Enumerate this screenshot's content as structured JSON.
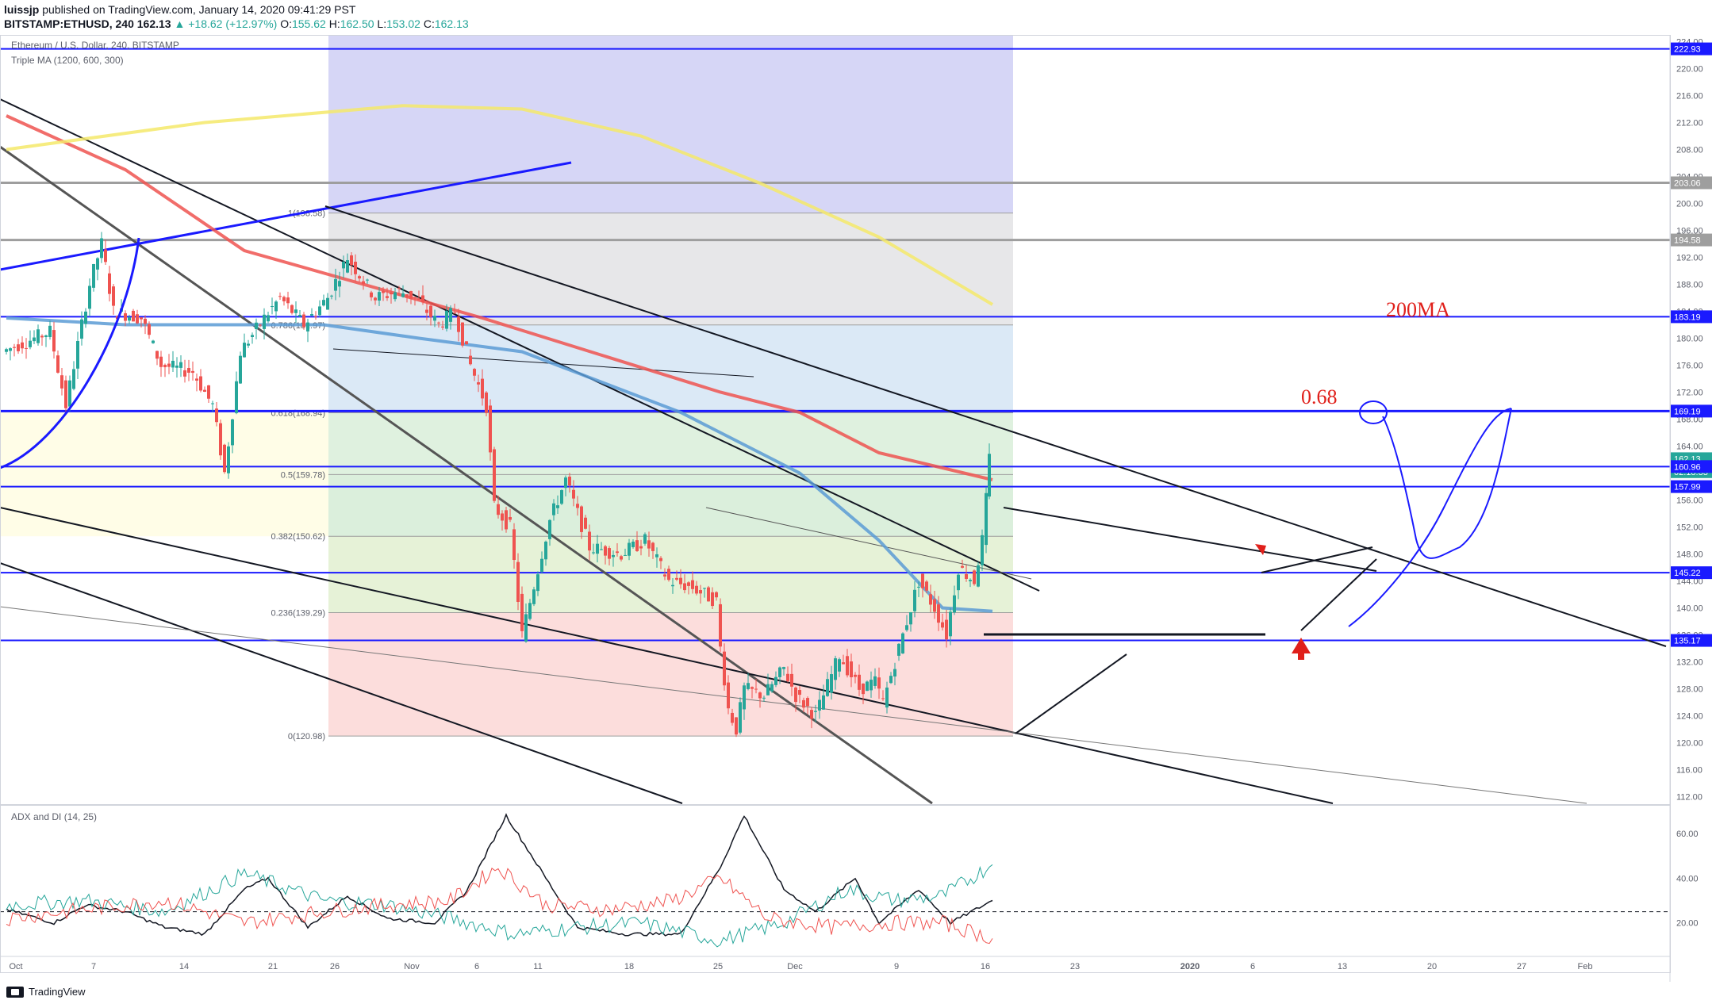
{
  "header": {
    "user": "luissjp",
    "published": "published on TradingView.com, January 14, 2020 09:41:29 PST",
    "symbol": "BITSTAMP:ETHUSD, 240",
    "last": "162.13",
    "change": "▲ +18.62 (+12.97%)",
    "o_label": "O:",
    "o": "155.62",
    "h_label": "H:",
    "h": "162.50",
    "l_label": "L:",
    "l": "153.02",
    "c_label": "C:",
    "c": "162.13"
  },
  "pane": {
    "title": "Ethereum / U.S. Dollar, 240, BITSTAMP",
    "indicator": "Triple MA (1200, 600, 300)",
    "adx_title": "ADX and DI (14, 25)"
  },
  "footer": {
    "brand": "TradingView"
  },
  "colors": {
    "up": "#26a69a",
    "down": "#ef5350",
    "blue_line": "#1a1aff",
    "ma_red": "#ef5350",
    "ma_blue": "#5b9bd5",
    "ma_yellow": "#f5e96a",
    "annotation_red": "#e0201b",
    "annotation_blue": "#1a1aff"
  },
  "chart_data": [
    {
      "type": "line",
      "title": "Ethereum / U.S. Dollar, 240, BITSTAMP",
      "xlabel": "",
      "ylabel": "",
      "x_ticks": [
        "Oct",
        "7",
        "14",
        "21",
        "26",
        "Nov",
        "6",
        "11",
        "18",
        "25",
        "Dec",
        "9",
        "16",
        "23",
        "2020",
        "6",
        "13",
        "20",
        "27",
        "Feb"
      ],
      "y_ticks": [
        "224.00",
        "220.00",
        "216.00",
        "212.00",
        "208.00",
        "204.00",
        "200.00",
        "196.00",
        "192.00",
        "188.00",
        "184.00",
        "180.00",
        "176.00",
        "172.00",
        "168.00",
        "164.00",
        "160.00",
        "156.00",
        "152.00",
        "148.00",
        "144.00",
        "140.00",
        "136.00",
        "132.00",
        "128.00",
        "124.00",
        "120.00",
        "116.00",
        "112.00"
      ],
      "ylim": [
        111,
        225
      ],
      "price_labels": [
        {
          "value": 222.93,
          "text": "222.93",
          "color": "#1a1aff"
        },
        {
          "value": 203.06,
          "text": "203.06",
          "color": "#9e9e9e"
        },
        {
          "value": 194.58,
          "text": "194.58",
          "color": "#9e9e9e"
        },
        {
          "value": 183.19,
          "text": "183.19",
          "color": "#1a1aff"
        },
        {
          "value": 169.19,
          "text": "169.19",
          "color": "#1a1aff"
        },
        {
          "value": 162.13,
          "text": "162.13",
          "color": "#26a69a"
        },
        {
          "value": 160.2,
          "text": "02:18:33",
          "color": "#26a69a"
        },
        {
          "value": 160.96,
          "text": "160.96",
          "color": "#1a1aff"
        },
        {
          "value": 157.99,
          "text": "157.99",
          "color": "#1a1aff"
        },
        {
          "value": 145.22,
          "text": "145.22",
          "color": "#1a1aff"
        },
        {
          "value": 135.17,
          "text": "135.17",
          "color": "#1a1aff"
        }
      ],
      "horizontal_levels": [
        222.93,
        203.06,
        194.58,
        183.19,
        169.19,
        160.96,
        157.99,
        145.22,
        135.17
      ],
      "fib_levels": [
        {
          "label": "1(198.58)",
          "value": 198.58
        },
        {
          "label": "0.786(181.97)",
          "value": 181.97
        },
        {
          "label": "0.618(168.94)",
          "value": 168.94
        },
        {
          "label": "0.5(159.78)",
          "value": 159.78
        },
        {
          "label": "0.382(150.62)",
          "value": 150.62
        },
        {
          "label": "0.236(139.29)",
          "value": 139.29
        },
        {
          "label": "0(120.98)",
          "value": 120.98
        }
      ],
      "price_path": [
        {
          "x": 0,
          "y": 178
        },
        {
          "x": 60,
          "y": 181
        },
        {
          "x": 80,
          "y": 170
        },
        {
          "x": 110,
          "y": 188
        },
        {
          "x": 125,
          "y": 194
        },
        {
          "x": 140,
          "y": 184
        },
        {
          "x": 175,
          "y": 183
        },
        {
          "x": 200,
          "y": 176
        },
        {
          "x": 240,
          "y": 175
        },
        {
          "x": 265,
          "y": 170
        },
        {
          "x": 280,
          "y": 160
        },
        {
          "x": 300,
          "y": 178
        },
        {
          "x": 330,
          "y": 183
        },
        {
          "x": 350,
          "y": 186
        },
        {
          "x": 380,
          "y": 182
        },
        {
          "x": 410,
          "y": 186
        },
        {
          "x": 435,
          "y": 192
        },
        {
          "x": 470,
          "y": 186
        },
        {
          "x": 500,
          "y": 187
        },
        {
          "x": 520,
          "y": 186
        },
        {
          "x": 550,
          "y": 182
        },
        {
          "x": 570,
          "y": 184
        },
        {
          "x": 590,
          "y": 176
        },
        {
          "x": 610,
          "y": 170
        },
        {
          "x": 620,
          "y": 155
        },
        {
          "x": 640,
          "y": 152
        },
        {
          "x": 655,
          "y": 136
        },
        {
          "x": 690,
          "y": 153
        },
        {
          "x": 710,
          "y": 159
        },
        {
          "x": 740,
          "y": 149
        },
        {
          "x": 780,
          "y": 148
        },
        {
          "x": 810,
          "y": 150
        },
        {
          "x": 840,
          "y": 144
        },
        {
          "x": 870,
          "y": 143
        },
        {
          "x": 900,
          "y": 141
        },
        {
          "x": 905,
          "y": 134
        },
        {
          "x": 915,
          "y": 125
        },
        {
          "x": 925,
          "y": 122
        },
        {
          "x": 935,
          "y": 128
        },
        {
          "x": 960,
          "y": 127
        },
        {
          "x": 985,
          "y": 131
        },
        {
          "x": 1000,
          "y": 127
        },
        {
          "x": 1025,
          "y": 124
        },
        {
          "x": 1055,
          "y": 133
        },
        {
          "x": 1080,
          "y": 128
        },
        {
          "x": 1100,
          "y": 129
        },
        {
          "x": 1110,
          "y": 126
        },
        {
          "x": 1135,
          "y": 136
        },
        {
          "x": 1155,
          "y": 144
        },
        {
          "x": 1175,
          "y": 140
        },
        {
          "x": 1190,
          "y": 136
        },
        {
          "x": 1205,
          "y": 146
        },
        {
          "x": 1225,
          "y": 144
        },
        {
          "x": 1235,
          "y": 150
        },
        {
          "x": 1243,
          "y": 162.13
        }
      ],
      "series": [
        {
          "values": [
            {
              "x": 0,
              "y": 183
            },
            {
              "x": 150,
              "y": 182
            },
            {
              "x": 400,
              "y": 182
            },
            {
              "x": 520,
              "y": 180
            },
            {
              "x": 650,
              "y": 178
            },
            {
              "x": 850,
              "y": 169
            },
            {
              "x": 1000,
              "y": 160
            },
            {
              "x": 1100,
              "y": 150
            },
            {
              "x": 1180,
              "y": 140
            },
            {
              "x": 1243,
              "y": 139.5
            }
          ],
          "color": "#5b9bd5"
        },
        {
          "values": [
            {
              "x": 0,
              "y": 213
            },
            {
              "x": 150,
              "y": 205
            },
            {
              "x": 300,
              "y": 193
            },
            {
              "x": 600,
              "y": 183
            },
            {
              "x": 900,
              "y": 172
            },
            {
              "x": 1000,
              "y": 169
            },
            {
              "x": 1100,
              "y": 163
            },
            {
              "x": 1243,
              "y": 159
            }
          ],
          "color": "#ef5350"
        },
        {
          "values": [
            {
              "x": 0,
              "y": 208
            },
            {
              "x": 250,
              "y": 212
            },
            {
              "x": 500,
              "y": 214.5
            },
            {
              "x": 650,
              "y": 214
            },
            {
              "x": 800,
              "y": 210
            },
            {
              "x": 950,
              "y": 203
            },
            {
              "x": 1100,
              "y": 195
            },
            {
              "x": 1243,
              "y": 185
            }
          ],
          "color": "#f5e96a"
        }
      ]
    },
    {
      "type": "line",
      "title": "ADX and DI (14, 25)",
      "y_ticks": [
        "60.00",
        "40.00",
        "20.00"
      ],
      "ylim": [
        5,
        72
      ],
      "threshold": 25,
      "series": [
        {
          "values": [
            {
              "x": 0,
              "y": 26
            },
            {
              "x": 60,
              "y": 20
            },
            {
              "x": 100,
              "y": 28
            },
            {
              "x": 150,
              "y": 25
            },
            {
              "x": 200,
              "y": 18
            },
            {
              "x": 250,
              "y": 15
            },
            {
              "x": 300,
              "y": 35
            },
            {
              "x": 330,
              "y": 40
            },
            {
              "x": 380,
              "y": 18
            },
            {
              "x": 430,
              "y": 32
            },
            {
              "x": 480,
              "y": 22
            },
            {
              "x": 540,
              "y": 20
            },
            {
              "x": 580,
              "y": 34
            },
            {
              "x": 630,
              "y": 68
            },
            {
              "x": 680,
              "y": 40
            },
            {
              "x": 720,
              "y": 18
            },
            {
              "x": 780,
              "y": 15
            },
            {
              "x": 850,
              "y": 15
            },
            {
              "x": 900,
              "y": 45
            },
            {
              "x": 930,
              "y": 68
            },
            {
              "x": 980,
              "y": 35
            },
            {
              "x": 1020,
              "y": 25
            },
            {
              "x": 1070,
              "y": 40
            },
            {
              "x": 1100,
              "y": 20
            },
            {
              "x": 1150,
              "y": 35
            },
            {
              "x": 1190,
              "y": 20
            },
            {
              "x": 1243,
              "y": 30
            }
          ],
          "color": "#131722"
        },
        {
          "values": [
            {
              "x": 0,
              "y": 28
            },
            {
              "x": 100,
              "y": 30
            },
            {
              "x": 200,
              "y": 25
            },
            {
              "x": 300,
              "y": 42
            },
            {
              "x": 400,
              "y": 30
            },
            {
              "x": 480,
              "y": 28
            },
            {
              "x": 560,
              "y": 22
            },
            {
              "x": 640,
              "y": 15
            },
            {
              "x": 720,
              "y": 18
            },
            {
              "x": 800,
              "y": 20
            },
            {
              "x": 900,
              "y": 12
            },
            {
              "x": 980,
              "y": 20
            },
            {
              "x": 1060,
              "y": 35
            },
            {
              "x": 1120,
              "y": 30
            },
            {
              "x": 1180,
              "y": 32
            },
            {
              "x": 1243,
              "y": 46
            }
          ],
          "color": "#26a69a"
        },
        {
          "values": [
            {
              "x": 0,
              "y": 22
            },
            {
              "x": 100,
              "y": 26
            },
            {
              "x": 200,
              "y": 30
            },
            {
              "x": 300,
              "y": 20
            },
            {
              "x": 400,
              "y": 25
            },
            {
              "x": 480,
              "y": 28
            },
            {
              "x": 560,
              "y": 30
            },
            {
              "x": 620,
              "y": 45
            },
            {
              "x": 680,
              "y": 28
            },
            {
              "x": 760,
              "y": 26
            },
            {
              "x": 840,
              "y": 30
            },
            {
              "x": 900,
              "y": 40
            },
            {
              "x": 960,
              "y": 22
            },
            {
              "x": 1040,
              "y": 18
            },
            {
              "x": 1120,
              "y": 20
            },
            {
              "x": 1180,
              "y": 20
            },
            {
              "x": 1243,
              "y": 13
            }
          ],
          "color": "#ef5350"
        }
      ]
    }
  ],
  "annotations": {
    "ma200": "200MA",
    "fib68": "0.68"
  }
}
